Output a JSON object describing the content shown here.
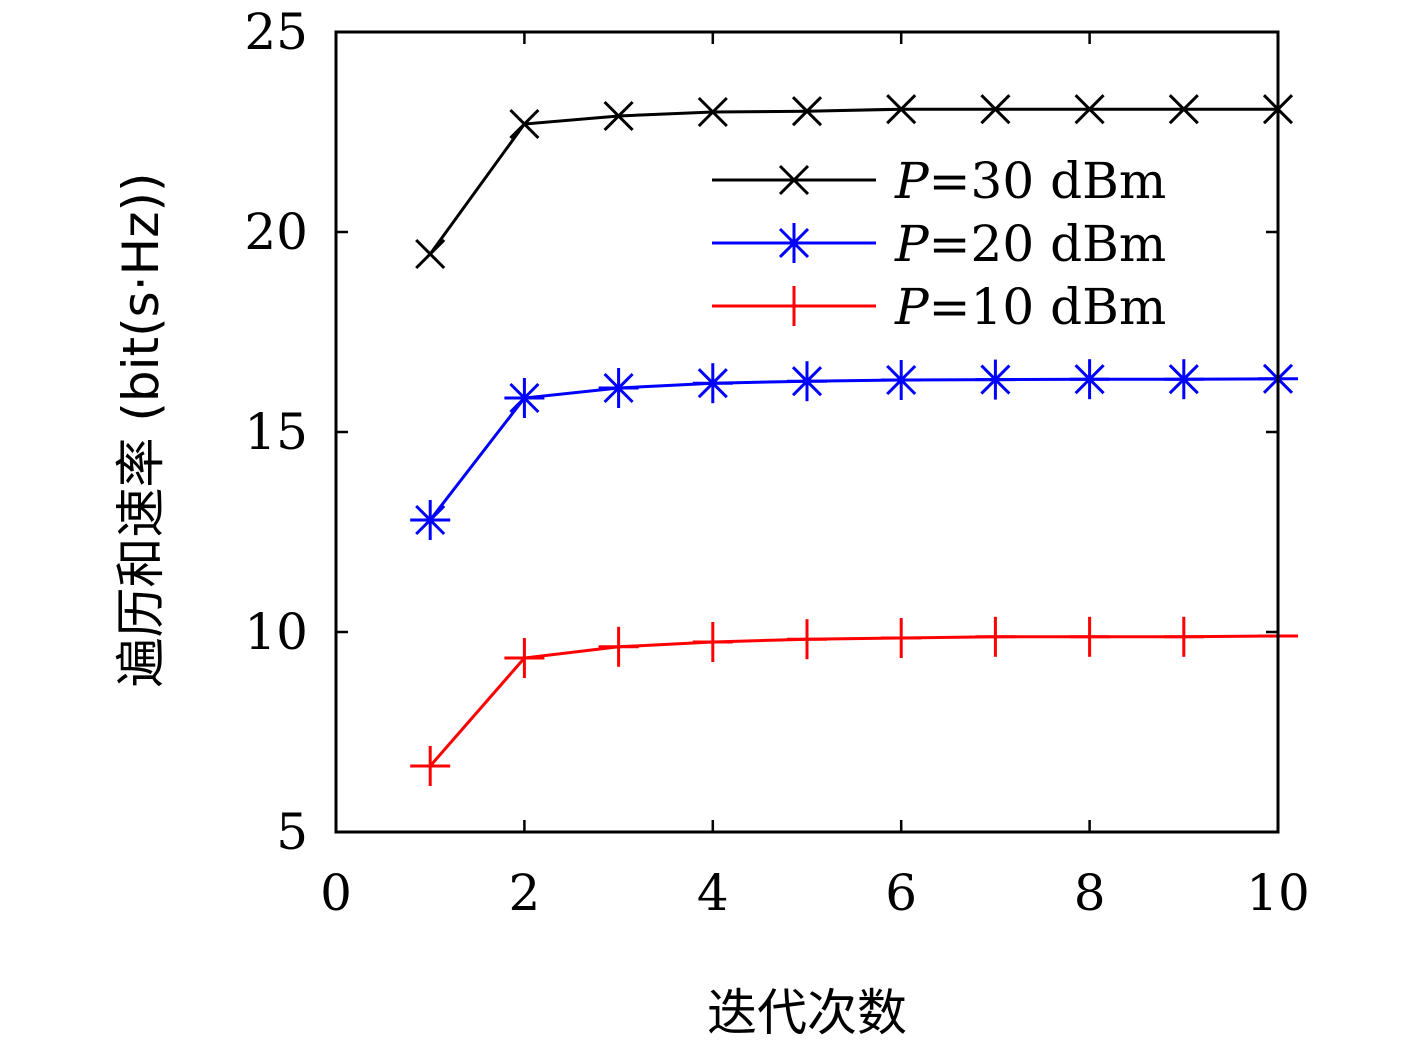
{
  "chart_data": {
    "type": "line",
    "xlabel": "迭代次数",
    "ylabel": "遍历和速率 (bit(s·Hz))",
    "xlim": [
      0,
      10
    ],
    "ylim": [
      5,
      25
    ],
    "xticks": [
      0,
      2,
      4,
      6,
      8,
      10
    ],
    "yticks": [
      5,
      10,
      15,
      20,
      25
    ],
    "x": [
      1,
      2,
      3,
      4,
      5,
      6,
      7,
      8,
      9,
      10
    ],
    "grid": false,
    "legend_position": "top-right",
    "series": [
      {
        "name": "P=30 dBm",
        "name_italic": "P",
        "name_rest": "=30 dBm",
        "color": "#000000",
        "marker": "x",
        "values": [
          19.45,
          22.7,
          22.9,
          23.0,
          23.02,
          23.07,
          23.07,
          23.07,
          23.07,
          23.07
        ]
      },
      {
        "name": "P=20 dBm",
        "name_italic": "P",
        "name_rest": "=20 dBm",
        "color": "#0000ff",
        "marker": "asterisk",
        "values": [
          12.8,
          15.85,
          16.1,
          16.22,
          16.27,
          16.3,
          16.31,
          16.32,
          16.32,
          16.33
        ]
      },
      {
        "name": "P=10 dBm",
        "name_italic": "P",
        "name_rest": "=10 dBm",
        "color": "#ff0000",
        "marker": "plus",
        "values": [
          6.65,
          9.35,
          9.63,
          9.75,
          9.82,
          9.85,
          9.88,
          9.88,
          9.88,
          9.9
        ]
      }
    ]
  }
}
